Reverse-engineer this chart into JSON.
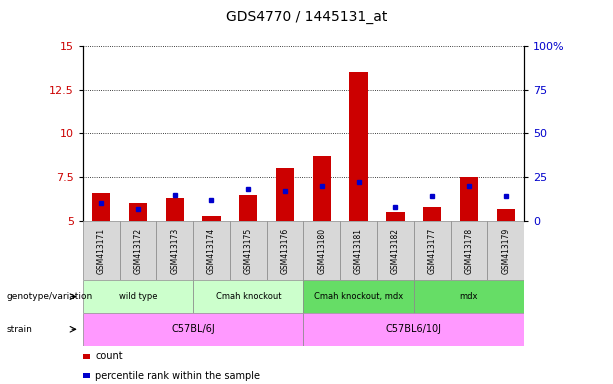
{
  "title": "GDS4770 / 1445131_at",
  "samples": [
    "GSM413171",
    "GSM413172",
    "GSM413173",
    "GSM413174",
    "GSM413175",
    "GSM413176",
    "GSM413180",
    "GSM413181",
    "GSM413182",
    "GSM413177",
    "GSM413178",
    "GSM413179"
  ],
  "red_values": [
    6.6,
    6.0,
    6.3,
    5.3,
    6.5,
    8.0,
    8.7,
    13.5,
    5.5,
    5.8,
    7.5,
    5.7
  ],
  "blue_values": [
    10,
    7,
    15,
    12,
    18,
    17,
    20,
    22,
    8,
    14,
    20,
    14
  ],
  "ylim_left": [
    5,
    15
  ],
  "ylim_right": [
    0,
    100
  ],
  "left_ticks": [
    5,
    7.5,
    10,
    12.5,
    15
  ],
  "left_tick_labels": [
    "5",
    "7.5",
    "10",
    "12.5",
    "15"
  ],
  "right_ticks": [
    0,
    25,
    50,
    75,
    100
  ],
  "right_tick_labels": [
    "0",
    "25",
    "50",
    "75",
    "100%"
  ],
  "genotype_groups": [
    {
      "label": "wild type",
      "start": 0,
      "end": 3,
      "color": "#ccffcc"
    },
    {
      "label": "Cmah knockout",
      "start": 3,
      "end": 6,
      "color": "#ccffcc"
    },
    {
      "label": "Cmah knockout, mdx",
      "start": 6,
      "end": 9,
      "color": "#66dd66"
    },
    {
      "label": "mdx",
      "start": 9,
      "end": 12,
      "color": "#66dd66"
    }
  ],
  "strain_groups": [
    {
      "label": "C57BL/6J",
      "start": 0,
      "end": 6,
      "color": "#ff99ff"
    },
    {
      "label": "C57BL6/10J",
      "start": 6,
      "end": 12,
      "color": "#ff99ff"
    }
  ],
  "bar_color": "#cc0000",
  "dot_color": "#0000cc",
  "label_color_left": "#cc0000",
  "label_color_right": "#0000cc",
  "legend_count": "count",
  "legend_percentile": "percentile rank within the sample",
  "genotype_label": "genotype/variation",
  "strain_label": "strain"
}
